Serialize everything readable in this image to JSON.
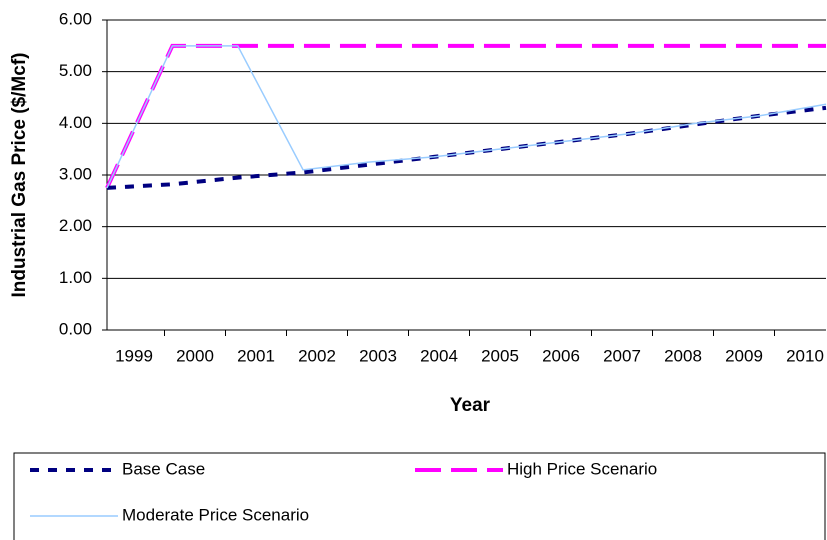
{
  "chart_data": {
    "type": "line",
    "y_label": "Industrial Gas Price ($/Mcf)",
    "x_label": "Year",
    "categories": [
      "1999",
      "2000",
      "2001",
      "2002",
      "2003",
      "2004",
      "2005",
      "2006",
      "2007",
      "2008",
      "2009",
      "2010"
    ],
    "series": [
      {
        "name": "Base Case",
        "color": "#000080",
        "values": [
          2.75,
          2.82,
          2.95,
          3.05,
          3.2,
          3.35,
          3.5,
          3.65,
          3.8,
          3.98,
          4.15,
          4.3
        ]
      },
      {
        "name": "High Price Scenario",
        "color": "#ff00ff",
        "values": [
          2.75,
          5.5,
          5.5,
          5.5,
          5.5,
          5.5,
          5.5,
          5.5,
          5.5,
          5.5,
          5.5,
          5.5
        ]
      },
      {
        "name": "Moderate Price Scenario",
        "color": "#99ccff",
        "values": [
          2.75,
          5.5,
          5.5,
          3.1,
          3.25,
          3.35,
          3.5,
          3.65,
          3.8,
          4.0,
          4.15,
          4.37
        ]
      }
    ],
    "ylim": [
      0,
      6
    ],
    "yticks": [
      {
        "value": 0,
        "label": "0.00"
      },
      {
        "value": 1,
        "label": "1.00"
      },
      {
        "value": 2,
        "label": "2.00"
      },
      {
        "value": 3,
        "label": "3.00"
      },
      {
        "value": 4,
        "label": "4.00"
      },
      {
        "value": 5,
        "label": "5.00"
      },
      {
        "value": 6,
        "label": "6.00"
      }
    ],
    "grid": true,
    "legend": "bottom"
  }
}
